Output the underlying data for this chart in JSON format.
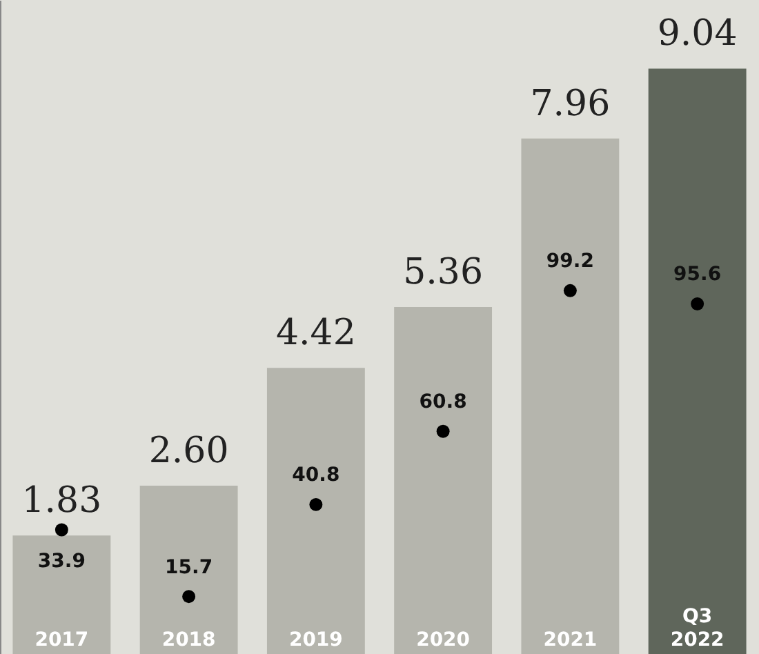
{
  "chart_data": {
    "type": "bar",
    "categories": [
      "2017",
      "2018",
      "2019",
      "2020",
      "2021",
      "Q3 2022"
    ],
    "series": [
      {
        "type": "bar",
        "colors": [
          "#b5b5ad",
          "#b5b5ad",
          "#b5b5ad",
          "#b5b5ad",
          "#b5b5ad",
          "#5f665b"
        ],
        "values": [
          1.83,
          2.6,
          4.42,
          5.36,
          7.96,
          9.04
        ],
        "value_labels": [
          "1.83",
          "2.60",
          "4.42",
          "5.36",
          "7.96",
          "9.04"
        ]
      },
      {
        "type": "scatter",
        "axis": "y2",
        "color": "#000000",
        "marker": "circle",
        "values": [
          33.9,
          15.7,
          40.8,
          60.8,
          99.2,
          95.6
        ],
        "value_labels": [
          "33.9",
          "15.7",
          "40.8",
          "60.8",
          "99.2",
          "95.6"
        ]
      }
    ],
    "ylim": [
      0,
      10.1
    ],
    "tick_labels": "x"
  }
}
